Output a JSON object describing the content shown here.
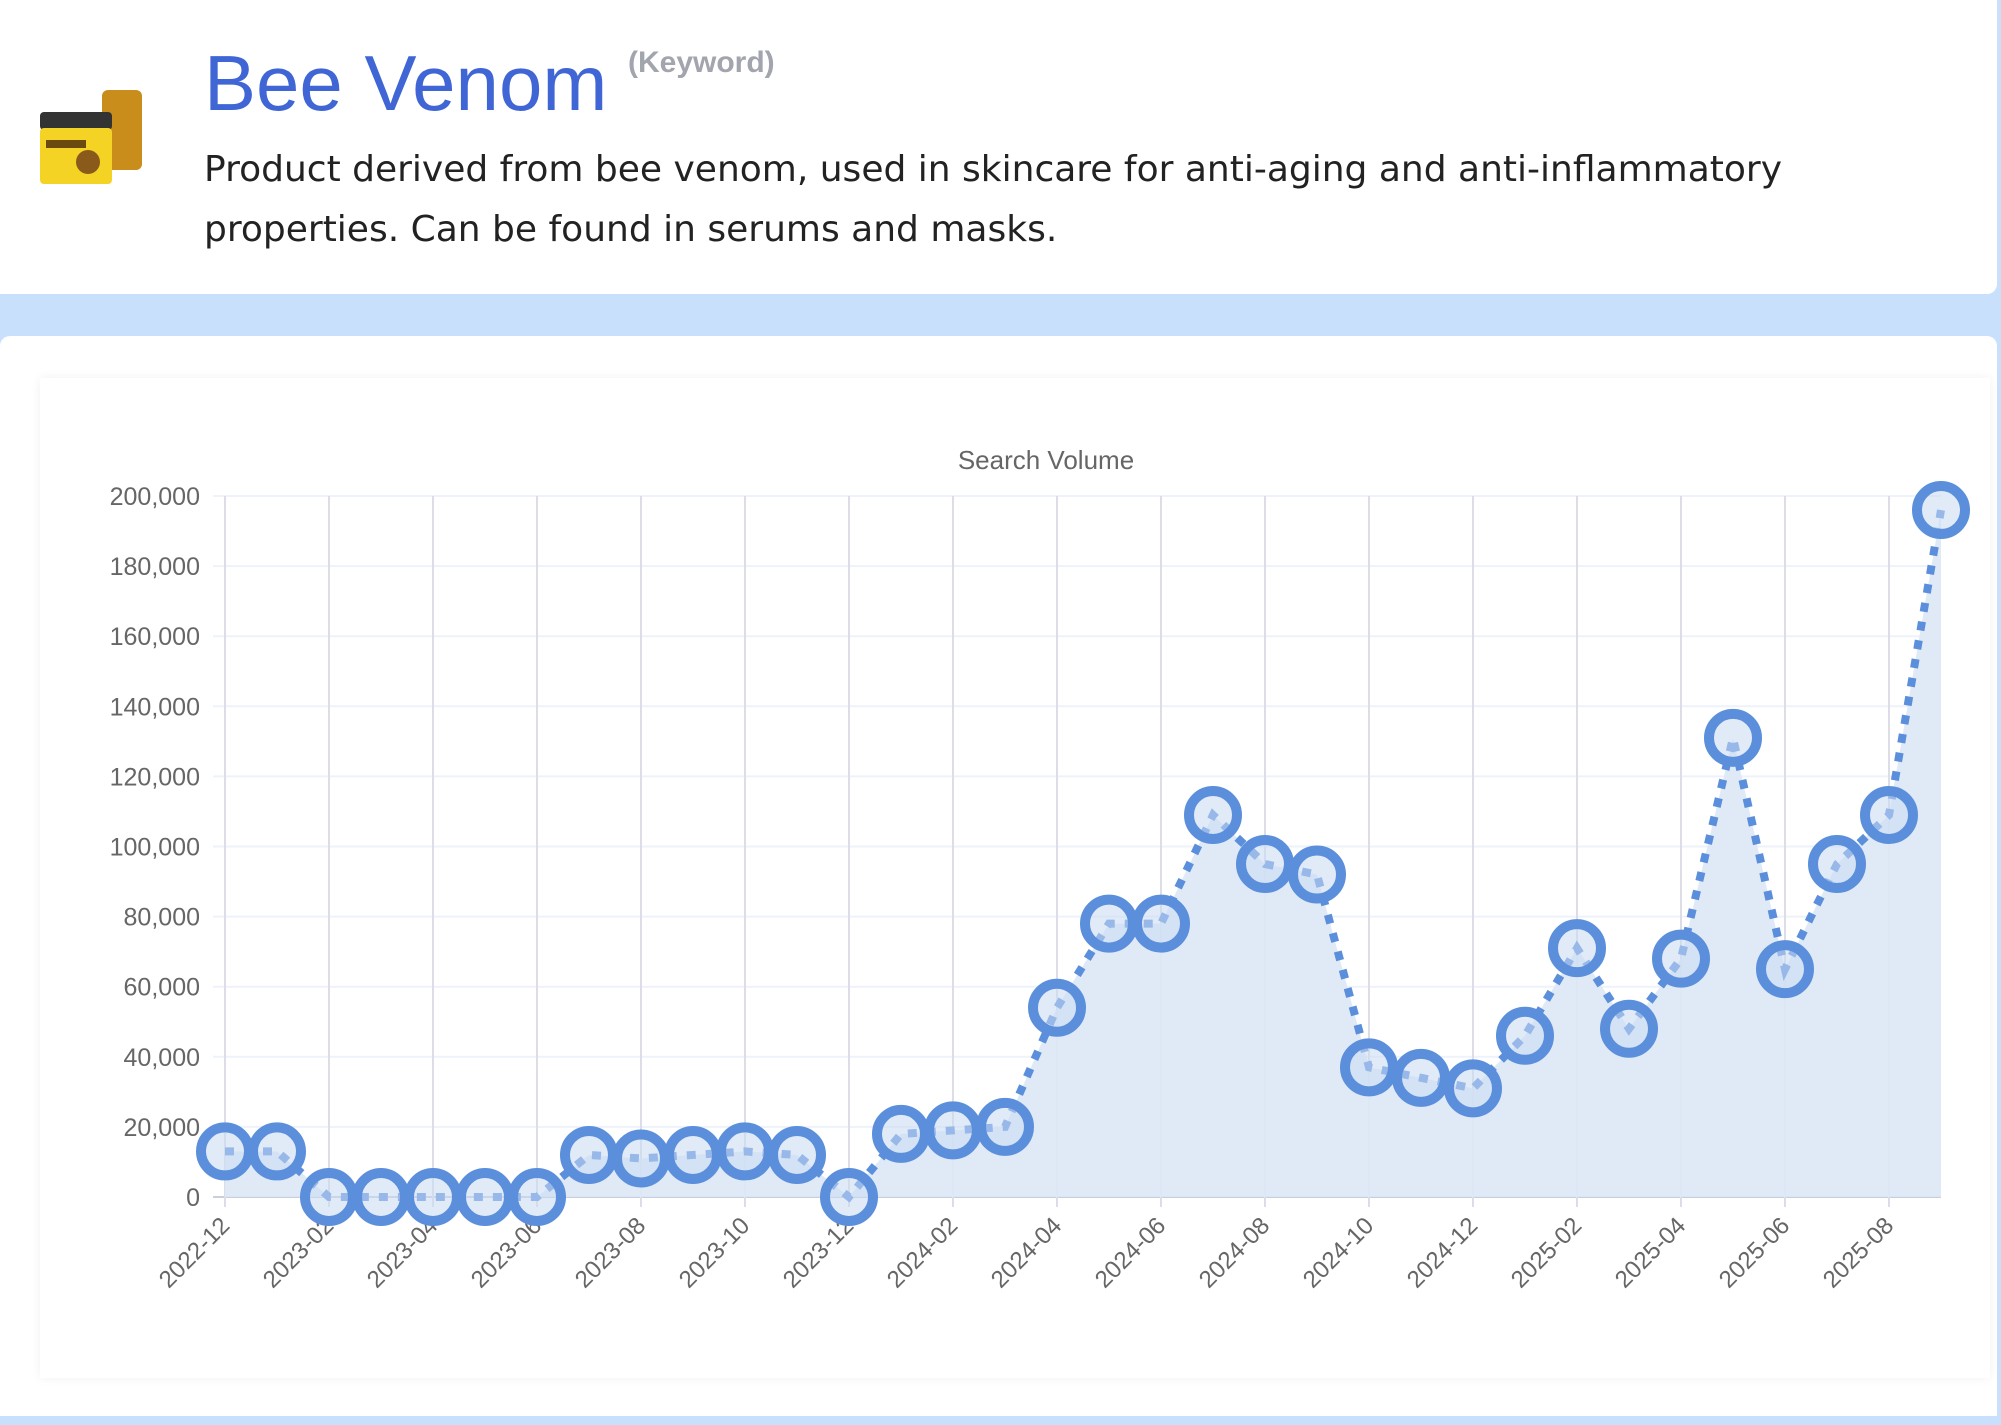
{
  "header": {
    "title": "Bee Venom",
    "tag": "(Keyword)",
    "description": "Product derived from bee venom, used in skincare for anti-aging and anti-inflammatory properties. Can be found in serums and masks.",
    "image_icon": "bee-venom-product-jar"
  },
  "colors": {
    "accent": "#4066d6",
    "line": "#5b8fdc",
    "fill": "#dde8f6",
    "band": "#c8e0fb"
  },
  "chart_data": {
    "type": "line",
    "title": "Search Volume",
    "xlabel": "",
    "ylabel": "",
    "ylim": [
      0,
      200000
    ],
    "yticks": [
      "0",
      "20,000",
      "40,000",
      "60,000",
      "80,000",
      "100,000",
      "120,000",
      "140,000",
      "160,000",
      "180,000",
      "200,000"
    ],
    "x": [
      "2022-12",
      "2023-01",
      "2023-02",
      "2023-03",
      "2023-04",
      "2023-05",
      "2023-06",
      "2023-07",
      "2023-08",
      "2023-09",
      "2023-10",
      "2023-11",
      "2023-12",
      "2024-01",
      "2024-02",
      "2024-03",
      "2024-04",
      "2024-05",
      "2024-06",
      "2024-07",
      "2024-08",
      "2024-09",
      "2024-10",
      "2024-11",
      "2024-12",
      "2025-01",
      "2025-02",
      "2025-03",
      "2025-04",
      "2025-05",
      "2025-06",
      "2025-07",
      "2025-08",
      "2025-09"
    ],
    "xticks": [
      "2022-12",
      "2023-02",
      "2023-04",
      "2023-06",
      "2023-08",
      "2023-10",
      "2023-12",
      "2024-02",
      "2024-04",
      "2024-06",
      "2024-08",
      "2024-10",
      "2024-12",
      "2025-02",
      "2025-04",
      "2025-06",
      "2025-08"
    ],
    "series": [
      {
        "name": "Search Volume",
        "values": [
          13000,
          13000,
          0,
          0,
          0,
          0,
          0,
          12000,
          11000,
          12000,
          13000,
          12000,
          0,
          18000,
          19000,
          20000,
          54000,
          78000,
          78000,
          109000,
          95000,
          92000,
          37000,
          34000,
          31000,
          46000,
          71000,
          48000,
          68000,
          131000,
          65000,
          95000,
          109000,
          196000
        ]
      }
    ],
    "grid": true,
    "fill": true
  }
}
